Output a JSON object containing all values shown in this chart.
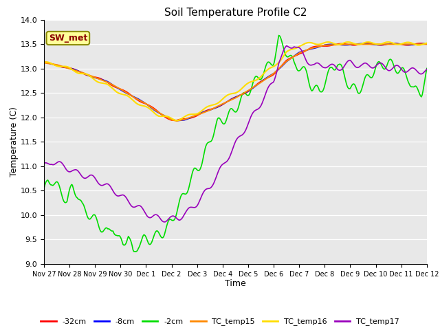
{
  "title": "Soil Temperature Profile C2",
  "xlabel": "Time",
  "ylabel": "Temperature (C)",
  "ylim": [
    9.0,
    14.0
  ],
  "yticks": [
    9.0,
    9.5,
    10.0,
    10.5,
    11.0,
    11.5,
    12.0,
    12.5,
    13.0,
    13.5,
    14.0
  ],
  "plot_bg": "#e8e8e8",
  "fig_bg": "#ffffff",
  "annotation_text": "SW_met",
  "annotation_color": "#8b0000",
  "annotation_bg": "#ffff99",
  "annotation_border": "#8b8b00",
  "series": [
    {
      "name": "-32cm",
      "color": "#ff0000",
      "lw": 1.2
    },
    {
      "name": "-8cm",
      "color": "#0000ff",
      "lw": 1.2
    },
    {
      "name": "-2cm",
      "color": "#00dd00",
      "lw": 1.2
    },
    {
      "name": "TC_temp15",
      "color": "#ff8800",
      "lw": 1.5
    },
    {
      "name": "TC_temp16",
      "color": "#ffdd00",
      "lw": 1.5
    },
    {
      "name": "TC_temp17",
      "color": "#9900bb",
      "lw": 1.2
    }
  ],
  "xtick_labels": [
    "Nov 27",
    "Nov 28",
    "Nov 29",
    "Nov 30",
    "Dec 1",
    "Dec 2",
    "Dec 3",
    "Dec 4",
    "Dec 5",
    "Dec 6",
    "Dec 7",
    "Dec 8",
    "Dec 9",
    "Dec 10",
    "Dec 11",
    "Dec 12"
  ],
  "figsize": [
    6.4,
    4.8
  ],
  "dpi": 100
}
